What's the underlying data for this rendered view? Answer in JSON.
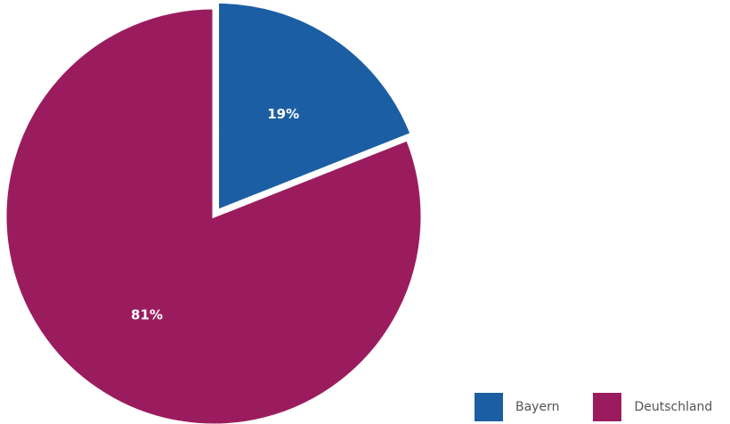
{
  "chart_data": {
    "type": "pie",
    "categories": [
      "Bayern",
      "Deutschland"
    ],
    "values": [
      19,
      81
    ],
    "labels": [
      "19%",
      "81%"
    ],
    "colors": [
      "#1b5ea3",
      "#9b1c5e"
    ],
    "start_angle_deg": 0,
    "direction": "clockwise",
    "exploded": "Bayern",
    "legend": {
      "position": "bottom-right",
      "items": [
        {
          "label": "Bayern",
          "color": "#1b5ea3"
        },
        {
          "label": "Deutschland",
          "color": "#9b1c5e"
        }
      ]
    }
  }
}
